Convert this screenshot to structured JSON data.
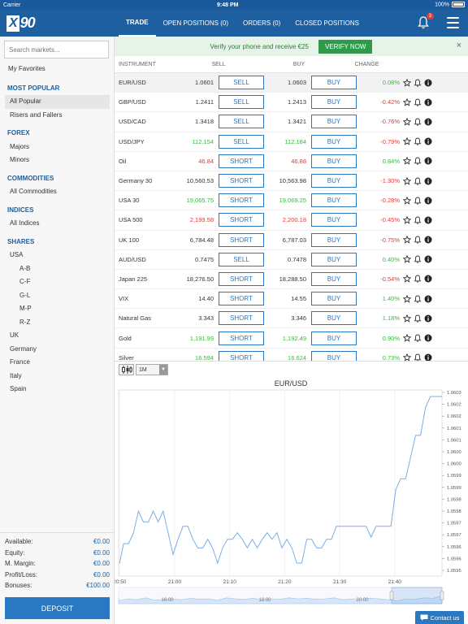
{
  "status": {
    "carrier": "Carrier",
    "time": "9:48 PM",
    "battery": "100%"
  },
  "app": {
    "logo_box": "X",
    "logo_text": "90"
  },
  "tabs": [
    {
      "label": "TRADE",
      "active": true
    },
    {
      "label": "OPEN POSITIONS (0)",
      "active": false
    },
    {
      "label": "ORDERS (0)",
      "active": false
    },
    {
      "label": "CLOSED POSITIONS",
      "active": false
    }
  ],
  "notifications": {
    "count": "3"
  },
  "search": {
    "placeholder": "Search markets..."
  },
  "sidebar": {
    "favorites": "My Favorites",
    "most_popular": {
      "title": "MOST POPULAR",
      "items": [
        "All Popular",
        "Risers and Fallers"
      ]
    },
    "forex": {
      "title": "FOREX",
      "items": [
        "Majors",
        "Minors"
      ]
    },
    "commodities": {
      "title": "COMMODITIES",
      "items": [
        "All Commodities"
      ]
    },
    "indices": {
      "title": "INDICES",
      "items": [
        "All Indices"
      ]
    },
    "shares": {
      "title": "SHARES",
      "items": [
        "USA",
        "A-B",
        "C-F",
        "G-L",
        "M-P",
        "R-Z",
        "UK",
        "Germany",
        "France",
        "Italy",
        "Spain"
      ]
    }
  },
  "account": {
    "rows": [
      {
        "label": "Available:",
        "value": "€0.00"
      },
      {
        "label": "Equity:",
        "value": "€0.00"
      },
      {
        "label": "M. Margin:",
        "value": "€0.00"
      },
      {
        "label": "Profit/Loss:",
        "value": "€0.00"
      },
      {
        "label": "Bonuses:",
        "value": "€100.00"
      }
    ],
    "deposit_label": "DEPOSIT"
  },
  "promo": {
    "text": "Verify your phone and receive €25",
    "button": "VERIFY NOW",
    "close": "×"
  },
  "table": {
    "headers": {
      "instrument": "INSTRUMENT",
      "sell": "SELL",
      "buy": "BUY",
      "change": "CHANGE"
    },
    "rows": [
      {
        "name": "EUR/USD",
        "sell": "1.0601",
        "sell_btn": "SELL",
        "buy": "1.0603",
        "buy_btn": "BUY",
        "change": "0.08%",
        "price_tone": "neu",
        "change_tone": "pos"
      },
      {
        "name": "GBP/USD",
        "sell": "1.2411",
        "sell_btn": "SELL",
        "buy": "1.2413",
        "buy_btn": "BUY",
        "change": "-0.42%",
        "price_tone": "neu",
        "change_tone": "neg"
      },
      {
        "name": "USD/CAD",
        "sell": "1.3418",
        "sell_btn": "SELL",
        "buy": "1.3421",
        "buy_btn": "BUY",
        "change": "-0.76%",
        "price_tone": "neu",
        "change_tone": "neg"
      },
      {
        "name": "USD/JPY",
        "sell": "112.154",
        "sell_btn": "SELL",
        "buy": "112.184",
        "buy_btn": "BUY",
        "change": "-0.79%",
        "price_tone": "pos",
        "change_tone": "neg"
      },
      {
        "name": "Oil",
        "sell": "46.84",
        "sell_btn": "SHORT",
        "buy": "46.88",
        "buy_btn": "BUY",
        "change": "0.84%",
        "price_tone": "neg",
        "change_tone": "pos"
      },
      {
        "name": "Germany 30",
        "sell": "10,560.53",
        "sell_btn": "SHORT",
        "buy": "10,563.98",
        "buy_btn": "BUY",
        "change": "-1.30%",
        "price_tone": "neu",
        "change_tone": "neg"
      },
      {
        "name": "USA 30",
        "sell": "19,065.75",
        "sell_btn": "SHORT",
        "buy": "19,069.25",
        "buy_btn": "BUY",
        "change": "-0.28%",
        "price_tone": "pos",
        "change_tone": "neg"
      },
      {
        "name": "USA 500",
        "sell": "2,199.58",
        "sell_btn": "SHORT",
        "buy": "2,200.18",
        "buy_btn": "BUY",
        "change": "-0.45%",
        "price_tone": "neg",
        "change_tone": "neg"
      },
      {
        "name": "UK 100",
        "sell": "6,784.48",
        "sell_btn": "SHORT",
        "buy": "6,787.03",
        "buy_btn": "BUY",
        "change": "-0.75%",
        "price_tone": "neu",
        "change_tone": "neg"
      },
      {
        "name": "AUD/USD",
        "sell": "0.7475",
        "sell_btn": "SELL",
        "buy": "0.7478",
        "buy_btn": "BUY",
        "change": "0.40%",
        "price_tone": "neu",
        "change_tone": "pos"
      },
      {
        "name": "Japan 225",
        "sell": "18,276.50",
        "sell_btn": "SHORT",
        "buy": "18,288.50",
        "buy_btn": "BUY",
        "change": "-0.54%",
        "price_tone": "neu",
        "change_tone": "neg"
      },
      {
        "name": "VIX",
        "sell": "14.40",
        "sell_btn": "SHORT",
        "buy": "14.55",
        "buy_btn": "BUY",
        "change": "1.40%",
        "price_tone": "neu",
        "change_tone": "pos"
      },
      {
        "name": "Natural Gas",
        "sell": "3.343",
        "sell_btn": "SHORT",
        "buy": "3.346",
        "buy_btn": "BUY",
        "change": "1.18%",
        "price_tone": "neu",
        "change_tone": "pos"
      },
      {
        "name": "Gold",
        "sell": "1,191.99",
        "sell_btn": "SHORT",
        "buy": "1,192.49",
        "buy_btn": "BUY",
        "change": "0.90%",
        "price_tone": "pos",
        "change_tone": "pos"
      },
      {
        "name": "Silver",
        "sell": "16.594",
        "sell_btn": "SHORT",
        "buy": "16.624",
        "buy_btn": "BUY",
        "change": "0.73%",
        "price_tone": "pos",
        "change_tone": "pos"
      }
    ]
  },
  "chart_toolbar": {
    "period": "1M",
    "arrow": "▼"
  },
  "chart_data": {
    "type": "line",
    "title": "EUR/USD",
    "x_ticks": [
      "20:50",
      "21:00",
      "21:10",
      "21:20",
      "21:30",
      "21:40"
    ],
    "x_range_min": [
      20.83,
      21.81
    ],
    "y_ticks": [
      "1.0603",
      "1.0602",
      "1.0602",
      "1.0601",
      "1.0601",
      "1.0600",
      "1.0600",
      "1.0599",
      "1.0599",
      "1.0598",
      "1.0598",
      "1.0597",
      "1.0597",
      "1.0596",
      "1.0596",
      "1.0595"
    ],
    "ylim": [
      1.05945,
      1.06031
    ],
    "x": [
      20.833,
      20.845,
      20.86,
      20.875,
      20.89,
      20.905,
      20.92,
      20.935,
      20.95,
      20.965,
      20.98,
      20.995,
      21.01,
      21.025,
      21.04,
      21.055,
      21.07,
      21.085,
      21.1,
      21.115,
      21.13,
      21.145,
      21.16,
      21.175,
      21.19,
      21.205,
      21.22,
      21.235,
      21.25,
      21.265,
      21.28,
      21.295,
      21.31,
      21.325,
      21.34,
      21.355,
      21.37,
      21.385,
      21.4,
      21.415,
      21.43,
      21.445,
      21.46,
      21.475,
      21.49,
      21.505,
      21.52,
      21.535,
      21.55,
      21.565,
      21.58,
      21.595,
      21.61,
      21.625,
      21.64,
      21.655,
      21.67,
      21.685,
      21.7,
      21.715,
      21.73,
      21.745,
      21.76,
      21.775,
      21.79,
      21.81
    ],
    "y": [
      1.05951,
      1.0596,
      1.0596,
      1.05965,
      1.05975,
      1.0597,
      1.0597,
      1.05975,
      1.0597,
      1.05975,
      1.05965,
      1.05955,
      1.05962,
      1.05968,
      1.05968,
      1.05962,
      1.05958,
      1.05958,
      1.05962,
      1.05958,
      1.05951,
      1.05958,
      1.05962,
      1.05962,
      1.05965,
      1.05962,
      1.05958,
      1.05962,
      1.05958,
      1.05962,
      1.05965,
      1.05962,
      1.05965,
      1.05958,
      1.05962,
      1.05958,
      1.05951,
      1.05951,
      1.05962,
      1.05962,
      1.05958,
      1.05958,
      1.05962,
      1.05962,
      1.05968,
      1.05968,
      1.05968,
      1.05968,
      1.05968,
      1.05968,
      1.05968,
      1.05963,
      1.05968,
      1.05968,
      1.05968,
      1.05968,
      1.05985,
      1.0599,
      1.0599,
      1.06,
      1.0601,
      1.0601,
      1.06023,
      1.06028,
      1.06028,
      1.06028
    ],
    "navigator_ticks": [
      "16:00",
      "18:00",
      "20:00"
    ]
  },
  "contact": "Contact us"
}
